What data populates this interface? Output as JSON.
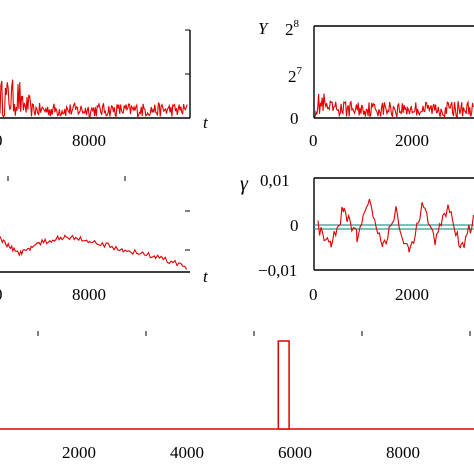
{
  "chart_data": [
    {
      "type": "line",
      "panel": "top-left",
      "x_tick_labels": [
        "8000"
      ],
      "x_variable": "t",
      "series": [
        {
          "color": "#e00000",
          "description_points": [
            [
              7000,
              0.25
            ],
            [
              7200,
              0.35
            ],
            [
              7500,
              0.12
            ],
            [
              8000,
              0.1
            ],
            [
              9000,
              0.08
            ],
            [
              9900,
              0.08
            ]
          ]
        }
      ]
    },
    {
      "type": "line",
      "panel": "top-right",
      "y_variable": "Y",
      "y_tick_labels": [
        "2",
        "2",
        "0"
      ],
      "y_tick_exponents": [
        "8",
        "7",
        ""
      ],
      "x_tick_labels": [
        "0",
        "2000"
      ],
      "ylim": [
        0,
        256
      ],
      "series": [
        {
          "color": "#e00000",
          "values_summary": [
            [
              0,
              20
            ],
            [
              500,
              15
            ],
            [
              1000,
              12
            ],
            [
              2000,
              12
            ],
            [
              2500,
              12
            ]
          ]
        }
      ]
    },
    {
      "type": "line",
      "panel": "middle-left",
      "x_tick_labels": [
        "8000"
      ],
      "x_variable": "t",
      "series": [
        {
          "color": "#e00000",
          "points": [
            [
              7000,
              -0.2
            ],
            [
              7300,
              -0.55
            ],
            [
              7600,
              -0.3
            ],
            [
              8000,
              -0.15
            ],
            [
              8400,
              -0.25
            ],
            [
              8900,
              -0.45
            ],
            [
              9400,
              -0.6
            ],
            [
              9900,
              -0.85
            ]
          ]
        }
      ]
    },
    {
      "type": "line",
      "panel": "middle-right",
      "y_variable": "γ",
      "y_tick_labels": [
        "0,01",
        "0",
        "−0,01"
      ],
      "x_tick_labels": [
        "0",
        "2000"
      ],
      "ylim": [
        -0.01,
        0.01
      ],
      "reference_line": 0,
      "series": [
        {
          "color": "#e00000",
          "points": [
            [
              0,
              0.0
            ],
            [
              200,
              -0.003
            ],
            [
              400,
              0.004
            ],
            [
              600,
              -0.002
            ],
            [
              800,
              0.006
            ],
            [
              1000,
              -0.004
            ],
            [
              1200,
              0.003
            ],
            [
              1400,
              -0.006
            ],
            [
              1600,
              0.005
            ],
            [
              1800,
              -0.003
            ],
            [
              2000,
              0.004
            ],
            [
              2200,
              -0.005
            ],
            [
              2400,
              0.002
            ]
          ]
        }
      ]
    },
    {
      "type": "bar",
      "panel": "bottom",
      "x_tick_labels": [
        "2000",
        "4000",
        "6000",
        "8000"
      ],
      "xlim": [
        0,
        10000
      ],
      "bars": [
        {
          "x_start": 6450,
          "x_end": 6650,
          "color": "#e00000"
        }
      ]
    }
  ]
}
